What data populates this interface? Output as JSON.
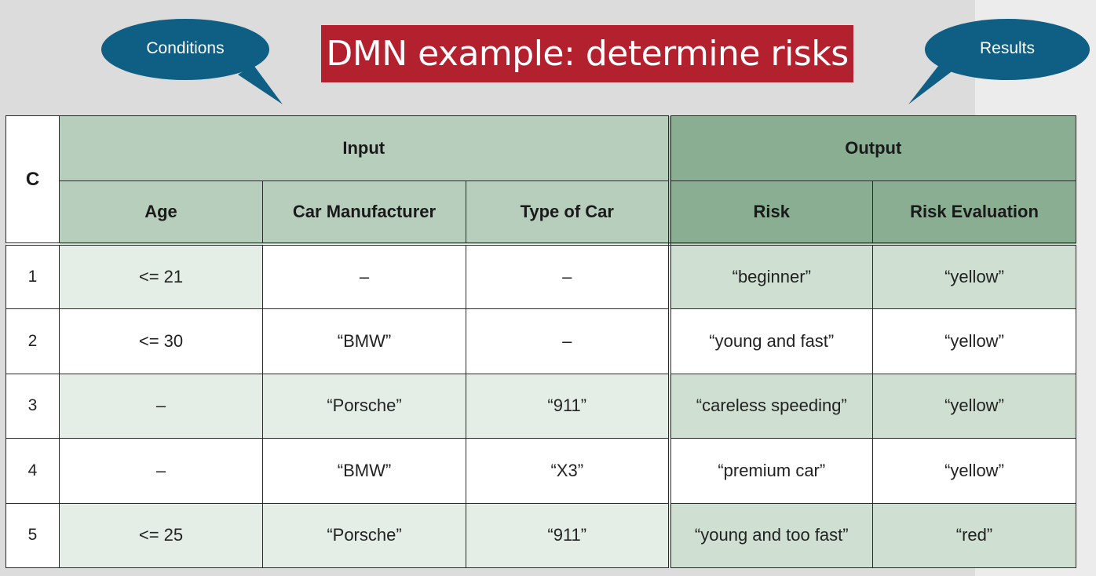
{
  "title": "DMN example: determine risks",
  "bubbles": {
    "conditions": "Conditions",
    "results": "Results"
  },
  "colors": {
    "title_bg": "#b3212e",
    "bubble_bg": "#0f5f85",
    "input_header": "#b7cebd",
    "output_header": "#8aae91"
  },
  "table": {
    "hit_policy": "C",
    "input_group": "Input",
    "output_group": "Output",
    "columns": {
      "age": "Age",
      "manufacturer": "Car Manufacturer",
      "type": "Type of Car",
      "risk": "Risk",
      "evaluation": "Risk Evaluation"
    },
    "rows": [
      {
        "n": "1",
        "age": "<= 21",
        "manufacturer": "–",
        "type": "–",
        "risk": "“beginner”",
        "evaluation": "“yellow”"
      },
      {
        "n": "2",
        "age": "<= 30",
        "manufacturer": "“BMW”",
        "type": "–",
        "risk": "“young and fast”",
        "evaluation": "“yellow”"
      },
      {
        "n": "3",
        "age": "–",
        "manufacturer": "“Porsche”",
        "type": "“911”",
        "risk": "“careless speeding”",
        "evaluation": "“yellow”"
      },
      {
        "n": "4",
        "age": "–",
        "manufacturer": "“BMW”",
        "type": "“X3”",
        "risk": "“premium car”",
        "evaluation": "“yellow”"
      },
      {
        "n": "5",
        "age": "<= 25",
        "manufacturer": "“Porsche”",
        "type": "“911”",
        "risk": "“young and too fast”",
        "evaluation": "“red”"
      }
    ]
  }
}
